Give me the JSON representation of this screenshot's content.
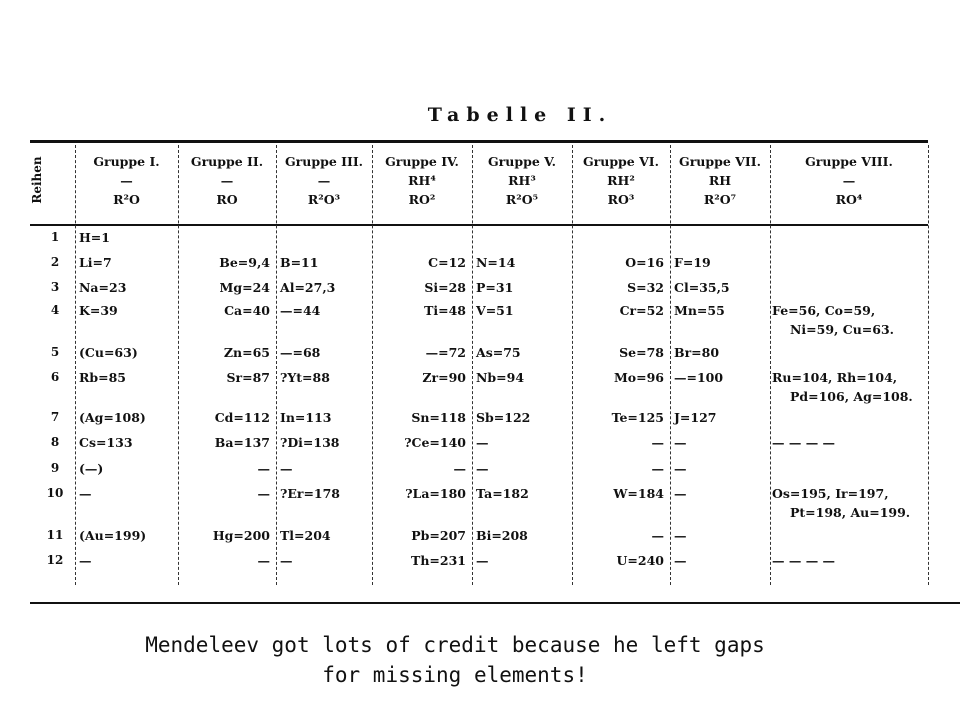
{
  "title": "Tabelle II.",
  "row_header": "Reihen",
  "groups": [
    {
      "name": "Gruppe I.",
      "hydride": "—",
      "oxide": "R²O"
    },
    {
      "name": "Gruppe II.",
      "hydride": "—",
      "oxide": "RO"
    },
    {
      "name": "Gruppe III.",
      "hydride": "—",
      "oxide": "R²O³"
    },
    {
      "name": "Gruppe IV.",
      "hydride": "RH⁴",
      "oxide": "RO²"
    },
    {
      "name": "Gruppe V.",
      "hydride": "RH³",
      "oxide": "R²O⁵"
    },
    {
      "name": "Gruppe VI.",
      "hydride": "RH²",
      "oxide": "RO³"
    },
    {
      "name": "Gruppe VII.",
      "hydride": "RH",
      "oxide": "R²O⁷"
    },
    {
      "name": "Gruppe VIII.",
      "hydride": "—",
      "oxide": "RO⁴"
    }
  ],
  "rows": [
    {
      "n": "1",
      "cells": [
        "H=1",
        "",
        "",
        "",
        "",
        "",
        "",
        ""
      ]
    },
    {
      "n": "2",
      "cells": [
        "Li=7",
        "Be=9,4",
        "B=11",
        "C=12",
        "N=14",
        "O=16",
        "F=19",
        ""
      ]
    },
    {
      "n": "3",
      "cells": [
        "Na=23",
        "Mg=24",
        "Al=27,3",
        "Si=28",
        "P=31",
        "S=32",
        "Cl=35,5",
        ""
      ]
    },
    {
      "n": "4",
      "cells": [
        "K=39",
        "Ca=40",
        "—=44",
        "Ti=48",
        "V=51",
        "Cr=52",
        "Mn=55",
        "Fe=56, Co=59,"
      ],
      "extra": "Ni=59, Cu=63."
    },
    {
      "n": "5",
      "cells": [
        "(Cu=63)",
        "Zn=65",
        "—=68",
        "—=72",
        "As=75",
        "Se=78",
        "Br=80",
        ""
      ]
    },
    {
      "n": "6",
      "cells": [
        "Rb=85",
        "Sr=87",
        "?Yt=88",
        "Zr=90",
        "Nb=94",
        "Mo=96",
        "—=100",
        "Ru=104, Rh=104,"
      ],
      "extra": "Pd=106, Ag=108."
    },
    {
      "n": "7",
      "cells": [
        "(Ag=108)",
        "Cd=112",
        "In=113",
        "Sn=118",
        "Sb=122",
        "Te=125",
        "J=127",
        ""
      ]
    },
    {
      "n": "8",
      "cells": [
        "Cs=133",
        "Ba=137",
        "?Di=138",
        "?Ce=140",
        "—",
        "—",
        "—",
        "— — — —"
      ]
    },
    {
      "n": "9",
      "cells": [
        "(—)",
        "—",
        "—",
        "—",
        "—",
        "—",
        "—",
        ""
      ]
    },
    {
      "n": "10",
      "cells": [
        "—",
        "—",
        "?Er=178",
        "?La=180",
        "Ta=182",
        "W=184",
        "—",
        "Os=195, Ir=197,"
      ],
      "extra": "Pt=198, Au=199."
    },
    {
      "n": "11",
      "cells": [
        "(Au=199)",
        "Hg=200",
        "Tl=204",
        "Pb=207",
        "Bi=208",
        "—",
        "—",
        ""
      ]
    },
    {
      "n": "12",
      "cells": [
        "—",
        "—",
        "—",
        "Th=231",
        "—",
        "U=240",
        "—",
        "— — — —"
      ]
    }
  ],
  "caption_lines": [
    "Mendeleev got lots of credit because he left gaps",
    "for missing elements!"
  ]
}
